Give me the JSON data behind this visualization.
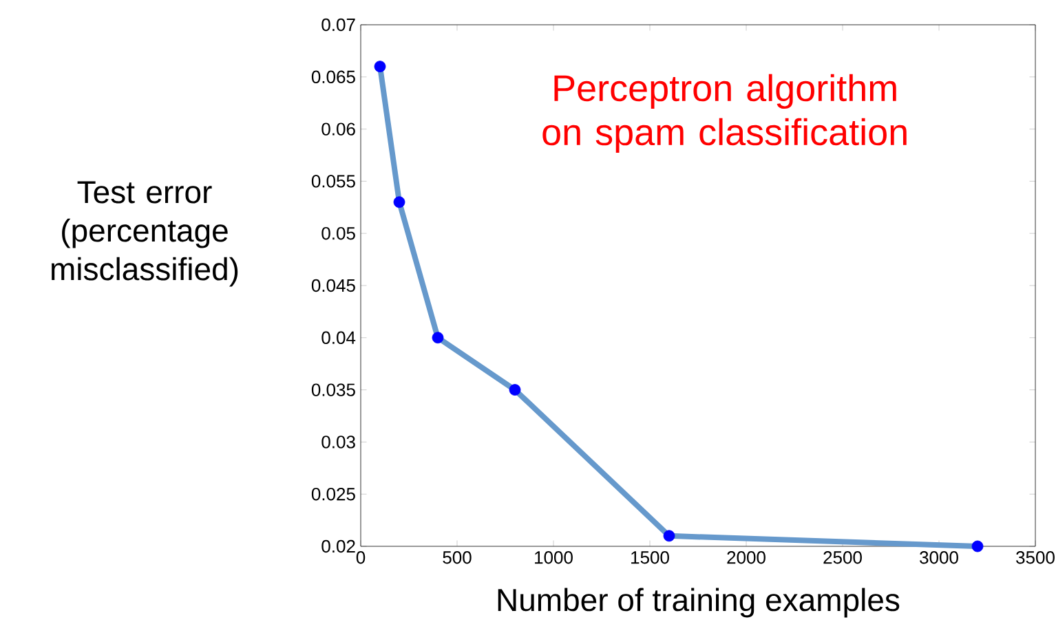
{
  "chart_data": {
    "type": "line",
    "ylabel": "Test error (percentage misclassified)",
    "xlabel": "Number of training examples",
    "annotations": [
      "Perceptron algorithm on spam classification"
    ],
    "x": [
      100,
      200,
      400,
      800,
      1600,
      3200
    ],
    "series": [
      {
        "type": "line",
        "color": "#6699cc",
        "values": [
          0.066,
          0.053,
          0.04,
          0.035,
          0.021,
          0.02
        ]
      },
      {
        "type": "scatter",
        "color": "#0000ff",
        "values": [
          0.066,
          0.053,
          0.04,
          0.035,
          0.021,
          0.02
        ]
      }
    ],
    "xlim": [
      0,
      3500
    ],
    "ylim": [
      0.02,
      0.07
    ],
    "xticks": [
      0,
      500,
      1000,
      1500,
      2000,
      2500,
      3000,
      3500
    ],
    "yticks": [
      0.02,
      0.025,
      0.03,
      0.035,
      0.04,
      0.045,
      0.05,
      0.055,
      0.06,
      0.065,
      0.07
    ],
    "line_style": "solid"
  }
}
